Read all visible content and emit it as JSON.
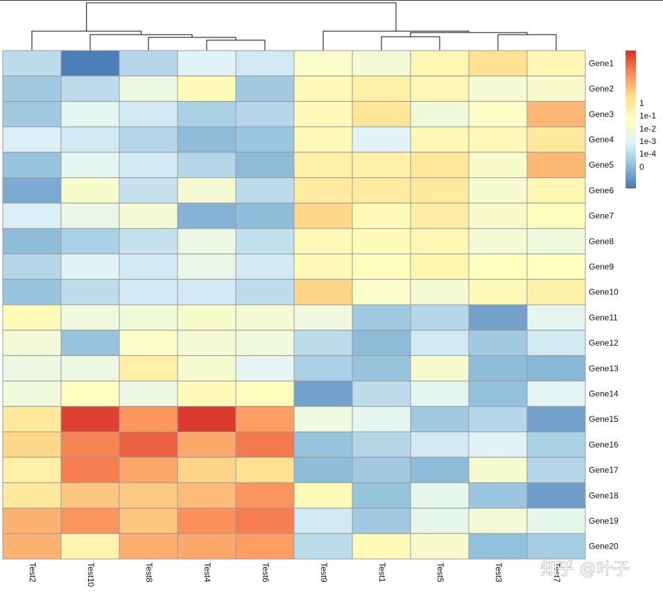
{
  "chart_data": {
    "type": "heatmap",
    "title": "",
    "xlabel": "",
    "ylabel": "",
    "columns": [
      "Test2",
      "Test10",
      "Test8",
      "Test4",
      "Test6",
      "Test9",
      "Test1",
      "Test5",
      "Test3",
      "Test7"
    ],
    "rows": [
      "Gene1",
      "Gene2",
      "Gene3",
      "Gene4",
      "Gene5",
      "Gene6",
      "Gene7",
      "Gene8",
      "Gene9",
      "Gene10",
      "Gene11",
      "Gene12",
      "Gene13",
      "Gene14",
      "Gene15",
      "Gene16",
      "Gene17",
      "Gene18",
      "Gene19",
      "Gene20"
    ],
    "values": [
      [
        -1.6,
        -4.0,
        -1.8,
        -0.8,
        -1.2,
        0.5,
        0.2,
        1.2,
        2.4,
        1.2
      ],
      [
        -2.2,
        -1.6,
        -0.2,
        1.0,
        -2.2,
        1.1,
        1.6,
        1.2,
        0.2,
        0.4
      ],
      [
        -2.2,
        -0.6,
        -1.2,
        -2.0,
        -1.8,
        1.0,
        2.2,
        0.0,
        0.6,
        3.3
      ],
      [
        -1.0,
        -1.2,
        -1.8,
        -2.6,
        -2.3,
        1.1,
        -0.8,
        1.2,
        1.1,
        2.0
      ],
      [
        -2.4,
        -0.6,
        -1.2,
        -1.8,
        -2.6,
        1.6,
        1.6,
        2.1,
        0.4,
        3.3
      ],
      [
        -3.0,
        0.4,
        -1.4,
        0.2,
        -1.6,
        1.9,
        1.9,
        2.0,
        0.3,
        1.3
      ],
      [
        -1.0,
        -0.4,
        0.2,
        -2.8,
        -2.6,
        2.6,
        1.0,
        1.8,
        0.4,
        0.9
      ],
      [
        -2.6,
        -2.0,
        -1.4,
        -0.2,
        -1.5,
        1.1,
        1.0,
        1.2,
        0.2,
        -0.1
      ],
      [
        -1.8,
        -0.8,
        -1.2,
        -0.4,
        -1.2,
        1.1,
        0.9,
        1.3,
        0.8,
        0.8
      ],
      [
        -2.4,
        -1.6,
        -1.2,
        -1.2,
        -1.6,
        2.7,
        0.5,
        0.2,
        1.1,
        1.5
      ],
      [
        1.0,
        -0.1,
        0.0,
        0.4,
        0.2,
        -0.1,
        -2.2,
        -1.8,
        -3.2,
        -0.6
      ],
      [
        0.1,
        -2.4,
        0.6,
        0.2,
        0.0,
        -1.6,
        -2.6,
        -1.2,
        -2.2,
        -1.2
      ],
      [
        -0.2,
        -0.2,
        1.6,
        0.3,
        -0.6,
        -2.0,
        -2.4,
        0.3,
        -2.6,
        -2.7
      ],
      [
        0.0,
        0.8,
        -0.2,
        1.0,
        0.9,
        -3.2,
        -1.6,
        -0.6,
        -2.5,
        -0.7
      ],
      [
        2.0,
        5.5,
        4.0,
        5.6,
        3.8,
        -0.1,
        -0.6,
        -2.2,
        -1.8,
        -3.2
      ],
      [
        2.6,
        4.3,
        4.9,
        3.6,
        4.5,
        -2.4,
        -1.8,
        -1.2,
        -0.8,
        -2.0
      ],
      [
        1.6,
        4.4,
        3.6,
        2.7,
        2.4,
        -2.6,
        -2.2,
        -2.6,
        0.3,
        -1.8
      ],
      [
        2.0,
        3.0,
        2.9,
        3.2,
        4.0,
        1.0,
        -2.4,
        -0.5,
        -2.3,
        -3.3
      ],
      [
        3.4,
        4.0,
        3.0,
        4.1,
        4.4,
        -1.2,
        -2.2,
        -0.5,
        0.1,
        -0.5
      ],
      [
        3.4,
        1.4,
        3.5,
        3.6,
        3.8,
        -1.6,
        1.0,
        0.4,
        -2.5,
        -2.1
      ]
    ],
    "color_scale": {
      "min": -4.2,
      "max": 5.8,
      "colors": [
        "#4575B4",
        "#91BFDB",
        "#E0F3F8",
        "#FFFFBF",
        "#FEE090",
        "#FC8D59",
        "#D73027"
      ]
    },
    "legend": {
      "position": "right",
      "labels": [
        "1",
        "1e-1",
        "1e-2",
        "1e-3",
        "1e-4",
        "0"
      ]
    },
    "grid": true,
    "column_dendrogram": true,
    "row_dendrogram": false,
    "colors": {
      "cell_border": "#999999",
      "dendrogram": "#000000"
    }
  },
  "watermark": {
    "text": "知乎 @叶子"
  }
}
